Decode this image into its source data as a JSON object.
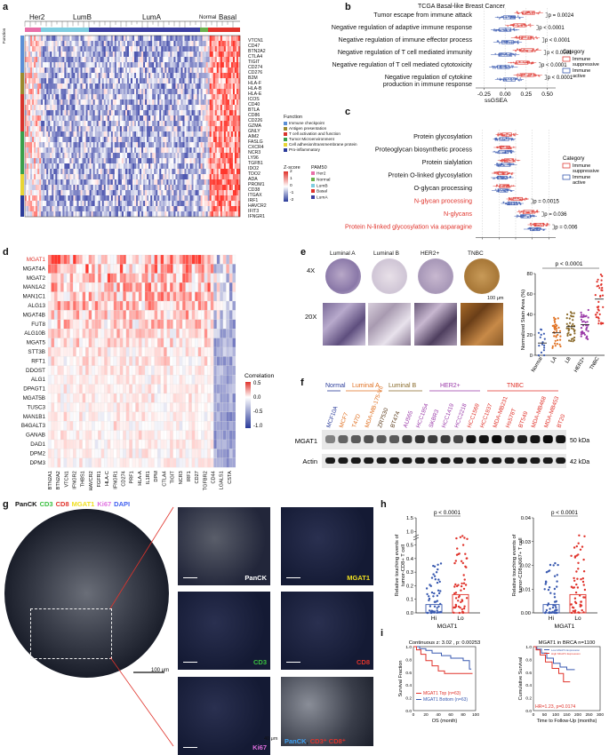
{
  "panel_letters": [
    "a",
    "b",
    "c",
    "d",
    "e",
    "f",
    "g",
    "h",
    "i"
  ],
  "panel_a": {
    "groups": [
      "Her2",
      "LumB",
      "LumA",
      "Normal",
      "Basal"
    ],
    "function_title": "Function",
    "genes": [
      "VTCN1",
      "CD47",
      "BTN2A2",
      "CTLA4",
      "TIGIT",
      "CD274",
      "CD276",
      "B2M",
      "HLA-F",
      "HLA-B",
      "HLA-E",
      "ICOS",
      "CD40",
      "BTLA",
      "CD86",
      "CD226",
      "GZMA",
      "GNLY",
      "AIM2",
      "FASLG",
      "CXCR4",
      "NCR3",
      "LY96",
      "TGFB1",
      "IDO2",
      "TDO2",
      "ADA",
      "PROM1",
      "CD38",
      "ITGAX",
      "IRF1",
      "HAVCR2",
      "IFIT3",
      "IFNGR1"
    ],
    "function_legend_title": "Function",
    "function_legend": [
      {
        "label": "Immune checkpoint",
        "color": "#5b8fd6"
      },
      {
        "label": "Antigen presentation",
        "color": "#9a8a2e"
      },
      {
        "label": "T cell activation and function",
        "color": "#d8342c"
      },
      {
        "label": "Tumor Microenvironment",
        "color": "#3aa04a"
      },
      {
        "label": "Cell adhesion/transmembrane protein",
        "color": "#e8d534"
      },
      {
        "label": "Pro-inflammatory",
        "color": "#2a3b9a"
      }
    ],
    "zscore_title": "Z-score",
    "zscore_ticks": [
      "2",
      "1",
      "0",
      "-1",
      "-2"
    ],
    "pam50_title": "PAM50",
    "pam50_legend": [
      {
        "label": "Her2",
        "color": "#e86ea8"
      },
      {
        "label": "Normal",
        "color": "#6ab04c"
      },
      {
        "label": "LumB",
        "color": "#7fcde0"
      },
      {
        "label": "Basal",
        "color": "#e0332b"
      },
      {
        "label": "LumA",
        "color": "#3c3ea0"
      }
    ]
  },
  "panel_b": {
    "title": "TCGA Basal-like Breast Cancer",
    "rows": [
      {
        "label": "Tumor escape from immune attack",
        "p": "p = 0.0024"
      },
      {
        "label": "Negative regulation of adaptive immune response",
        "p": "p < 0.0001"
      },
      {
        "label": "Negative regulation of immune effector process",
        "p": "p < 0.0001"
      },
      {
        "label": "Negative regulation of T cell mediated immunity",
        "p": "p < 0.0001"
      },
      {
        "label": "Negative regulation of T cell mediated cytotoxicity",
        "p": "p < 0.0001"
      },
      {
        "label": "Negative regulation of cytokine",
        "p": "p < 0.0001",
        "label2": "production in immune response"
      }
    ],
    "xticks": [
      "-0.25",
      "0.00",
      "0.25",
      "0.50"
    ],
    "xlabel": "ssGSEA",
    "legend_title": "Category",
    "legend": [
      {
        "label": "Immune suppressive",
        "color": "#e0403a"
      },
      {
        "label": "Immune active",
        "color": "#3a5ab0"
      }
    ]
  },
  "panel_c": {
    "rows": [
      {
        "label": "Protein glycosylation",
        "p": "",
        "red": false
      },
      {
        "label": "Proteoglycan biosynthetic process",
        "p": "",
        "red": false
      },
      {
        "label": "Protein sialylation",
        "p": "",
        "red": false
      },
      {
        "label": "Protein O-linked glycosylation",
        "p": "",
        "red": false
      },
      {
        "label": "O-glycan processing",
        "p": "",
        "red": false
      },
      {
        "label": "N-glycan processing",
        "p": "p = 0.0015",
        "red": true
      },
      {
        "label": "N-glycans",
        "p": "p = 0.036",
        "red": true
      },
      {
        "label": "Protein N-linked glycosylation via asparagine",
        "p": "p = 0.006",
        "red": true
      }
    ],
    "xticks": [
      "-0.25",
      "0.00",
      "0.25",
      "0.50",
      "0.75"
    ],
    "xlabel": "ssGSEA",
    "legend_title": "Category",
    "legend": [
      {
        "label": "Immune suppressive",
        "color": "#e0403a"
      },
      {
        "label": "Immune active",
        "color": "#3a5ab0"
      }
    ]
  },
  "panel_d": {
    "rows": [
      "MGAT1",
      "MGAT4A",
      "MGAT2",
      "MAN1A2",
      "MAN1C1",
      "ALG13",
      "MGAT4B",
      "FUT8",
      "ALG10B",
      "MGAT5",
      "STT3B",
      "RFT1",
      "DDOST",
      "ALG1",
      "DPAGT1",
      "MGAT5B",
      "TUSC3",
      "MAN1B1",
      "B4GALT3",
      "GANAB",
      "DAD1",
      "DPM2",
      "DPM3"
    ],
    "cols": [
      "BTN2A1",
      "BTN2A2",
      "VTCN1",
      "IFNGR2",
      "THBS1",
      "HAVCR2",
      "FGFR1",
      "HLA-C",
      "IFNGR1",
      "CD274",
      "PRF1",
      "HLA-A",
      "IL1R1",
      "DPM",
      "CTLA4",
      "TIGIT",
      "NCR3",
      "IRF1",
      "CD27",
      "TGFBR2",
      "CD44",
      "LGALS1",
      "CSTA"
    ],
    "legend_title": "Correlation",
    "legend_ticks": [
      "0.5",
      "0.0",
      "-0.5",
      "-1.0"
    ]
  },
  "panel_e": {
    "subtypes": [
      "Luminal A",
      "Luminal B",
      "HER2+",
      "TNBC"
    ],
    "row_labels": [
      "4X",
      "20X"
    ],
    "scale_label": "100 μm",
    "ylabel": "Normalized Stain Area (%)",
    "yticks": [
      "80",
      "60",
      "40",
      "20",
      "0"
    ],
    "xcats": [
      "Normal",
      "LA",
      "LB",
      "HER2+",
      "TNBC"
    ],
    "p": "p < 0.0001"
  },
  "panel_f": {
    "groups": [
      {
        "label": "Normal",
        "color": "#2a3b9a"
      },
      {
        "label": "Luminal A",
        "color": "#e07020"
      },
      {
        "label": "Luminal B",
        "color": "#8a6a2a"
      },
      {
        "label": "HER2+",
        "color": "#9a3aa8"
      },
      {
        "label": "TNBC",
        "color": "#e0332b"
      }
    ],
    "lanes": [
      {
        "label": "MCF10A",
        "color": "#2a3b9a"
      },
      {
        "label": "MCF7",
        "color": "#e07020"
      },
      {
        "label": "T47D",
        "color": "#e07020"
      },
      {
        "label": "MDA-MB-175-VII",
        "color": "#e07020"
      },
      {
        "label": "ZR7530",
        "color": "#5a3a1a"
      },
      {
        "label": "BT474",
        "color": "#5a3a1a"
      },
      {
        "label": "AU565",
        "color": "#9a3aa8"
      },
      {
        "label": "HCC1954",
        "color": "#9a3aa8"
      },
      {
        "label": "SKBR3",
        "color": "#9a3aa8"
      },
      {
        "label": "HCC1419",
        "color": "#9a3aa8"
      },
      {
        "label": "HCC2218",
        "color": "#9a3aa8"
      },
      {
        "label": "HCC1569",
        "color": "#e0332b"
      },
      {
        "label": "HCC1937",
        "color": "#e0332b"
      },
      {
        "label": "MDA-MB231",
        "color": "#e0332b"
      },
      {
        "label": "Hs578T",
        "color": "#e0332b"
      },
      {
        "label": "BT549",
        "color": "#e0332b"
      },
      {
        "label": "MDA-MB468",
        "color": "#e0332b"
      },
      {
        "label": "MDA-MB453",
        "color": "#e0332b"
      },
      {
        "label": "BT20",
        "color": "#e0332b"
      }
    ],
    "row_labels": [
      "MGAT1",
      "Actin"
    ],
    "sizes": [
      "50 kDa",
      "42 kDa"
    ]
  },
  "panel_g": {
    "legend": [
      {
        "label": "PanCK",
        "color": "#ffffff"
      },
      {
        "label": "CD3",
        "color": "#3ac040"
      },
      {
        "label": "CD8",
        "color": "#e0332b"
      },
      {
        "label": "MGAT1",
        "color": "#f0e020"
      },
      {
        "label": "Ki67",
        "color": "#e070e0"
      },
      {
        "label": "DAPI",
        "color": "#4060f0"
      }
    ],
    "main_scale": "100 μm",
    "tiles": [
      {
        "label": "PanCK",
        "color": "#ffffff"
      },
      {
        "label": "MGAT1",
        "color": "#f0e020"
      },
      {
        "label": "CD3",
        "color": "#3ac040"
      },
      {
        "label": "CD8",
        "color": "#e0332b"
      },
      {
        "label": "Ki67",
        "color": "#e070e0"
      }
    ],
    "merge_label_1": "PanCK",
    "merge_label_2": "CD3⁺ CD8⁺",
    "merge_scale": "40 μm"
  },
  "panel_h": {
    "left": {
      "p": "p < 0.0001",
      "ylabel1": "Relative touching events of",
      "ylabel2": "tumor-CD8+ T cell",
      "yticks": [
        "1.5",
        "1.0",
        "0.5",
        "0.4",
        "0.3",
        "0.2",
        "0.1",
        "0.0"
      ],
      "cats": [
        "Hi",
        "Lo"
      ],
      "xlabel": "MGAT1"
    },
    "right": {
      "p": "p < 0.0001",
      "ylabel1": "Relative touching events of",
      "ylabel2": "tumor-CD8+Ki67+ T cell",
      "yticks": [
        "0.04",
        "0.03",
        "0.02",
        "0.01",
        "0.00"
      ],
      "cats": [
        "Hi",
        "Lo"
      ],
      "xlabel": "MGAT1"
    }
  },
  "panel_i": {
    "left": {
      "title": "Continuous z: 3.02 , p: 0.00253",
      "ylabel": "Survival Fraction",
      "xlabel": "OS (month)",
      "yticks": [
        "1.0",
        "0.8",
        "0.6",
        "0.4",
        "0.2",
        "0.0"
      ],
      "xticks": [
        "0",
        "20",
        "40",
        "60",
        "80",
        "100"
      ],
      "legend": [
        {
          "label": "MGAT1 Top (n=63)",
          "color": "#e0332b"
        },
        {
          "label": "MGAT1 Bottom (n=63)",
          "color": "#3a5ab0"
        }
      ]
    },
    "right": {
      "title": "MGAT1 in BRCA n=1100",
      "ylabel": "Cumulative Survival",
      "xlabel": "Time to Follow-Up (months)",
      "yticks": [
        "1.0",
        "0.8",
        "0.6",
        "0.4",
        "0.2",
        "0.0"
      ],
      "xticks": [
        "0",
        "50",
        "100",
        "150",
        "200",
        "250",
        "300"
      ],
      "hr": "HR=1.23, p=0.0174",
      "legend": [
        {
          "label": "Low MGAT1 Expression",
          "color": "#3a5ab0"
        },
        {
          "label": "High MGAT1 Expression",
          "color": "#e0332b"
        }
      ]
    }
  },
  "colors": {
    "red": "#e0332b",
    "blue": "#3a5ab0",
    "heat_high": "#e0332b",
    "heat_low": "#2a3b9a"
  }
}
